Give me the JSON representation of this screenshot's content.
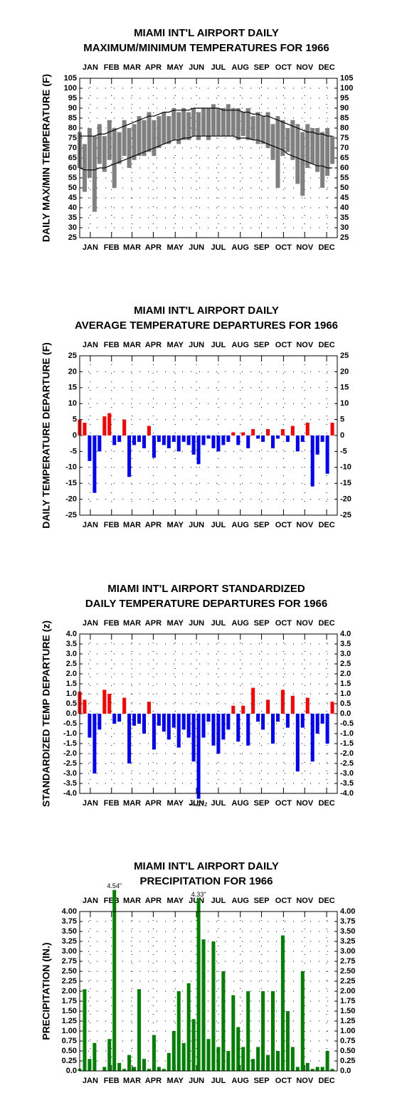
{
  "chart_data": [
    {
      "type": "range",
      "title": [
        "MIAMI INT'L AIRPORT DAILY",
        "MAXIMUM/MINIMUM TEMPERATURES FOR 1966"
      ],
      "y_label": "DAILY MAX/MIN TEMPERATURE (F)",
      "x": [
        1,
        8,
        15,
        22,
        29,
        36,
        43,
        50,
        57,
        64,
        71,
        78,
        85,
        92,
        99,
        106,
        113,
        120,
        127,
        134,
        141,
        148,
        155,
        162,
        169,
        176,
        183,
        190,
        197,
        204,
        211,
        218,
        225,
        232,
        239,
        246,
        253,
        260,
        267,
        274,
        281,
        288,
        295,
        302,
        309,
        316,
        323,
        330,
        337,
        344,
        351,
        358
      ],
      "series": [
        {
          "color": "#808080",
          "values": [
            78,
            72,
            80,
            76,
            82,
            76,
            84,
            80,
            78,
            84,
            80,
            82,
            86,
            84,
            88,
            84,
            86,
            88,
            86,
            90,
            88,
            90,
            88,
            90,
            88,
            90,
            90,
            92,
            90,
            90,
            92,
            90,
            90,
            88,
            90,
            86,
            88,
            86,
            88,
            82,
            86,
            84,
            80,
            84,
            82,
            78,
            82,
            80,
            80,
            78,
            80,
            76
          ]
        },
        {
          "color": "#808080",
          "values": [
            60,
            48,
            55,
            38,
            62,
            58,
            64,
            50,
            62,
            66,
            60,
            64,
            66,
            66,
            68,
            66,
            70,
            72,
            72,
            74,
            72,
            74,
            74,
            76,
            74,
            76,
            74,
            76,
            76,
            76,
            76,
            76,
            74,
            76,
            74,
            74,
            72,
            72,
            70,
            64,
            50,
            66,
            68,
            64,
            52,
            46,
            60,
            62,
            58,
            50,
            56,
            62
          ]
        },
        {
          "color": "#000000",
          "values": [
            76,
            76,
            76,
            76,
            77,
            77,
            78,
            79,
            80,
            81,
            82,
            83,
            84,
            85,
            86,
            86,
            87,
            88,
            88,
            89,
            89,
            89,
            89,
            90,
            90,
            90,
            90,
            90,
            90,
            89,
            89,
            89,
            89,
            88,
            88,
            87,
            87,
            86,
            86,
            85,
            84,
            83,
            82,
            81,
            80,
            79,
            78,
            78,
            77,
            77,
            76,
            76
          ]
        },
        {
          "color": "#000000",
          "values": [
            60,
            59,
            59,
            59,
            60,
            60,
            61,
            62,
            63,
            64,
            65,
            66,
            67,
            68,
            69,
            70,
            71,
            72,
            73,
            74,
            74,
            75,
            75,
            76,
            76,
            76,
            76,
            76,
            76,
            76,
            76,
            76,
            75,
            75,
            75,
            74,
            74,
            73,
            72,
            71,
            70,
            69,
            67,
            66,
            65,
            64,
            63,
            62,
            61,
            61,
            60,
            60
          ]
        }
      ],
      "xlim": [
        1,
        365
      ],
      "xticks": [
        {
          "value": 16,
          "label": "JAN"
        },
        {
          "value": 46,
          "label": "FEB"
        },
        {
          "value": 75,
          "label": "MAR"
        },
        {
          "value": 105,
          "label": "APR"
        },
        {
          "value": 136,
          "label": "MAY"
        },
        {
          "value": 166,
          "label": "JUN"
        },
        {
          "value": 197,
          "label": "JUL"
        },
        {
          "value": 228,
          "label": "AUG"
        },
        {
          "value": 258,
          "label": "SEP"
        },
        {
          "value": 289,
          "label": "OCT"
        },
        {
          "value": 319,
          "label": "NOV"
        },
        {
          "value": 350,
          "label": "DEC"
        }
      ],
      "ylim": [
        25,
        105
      ],
      "yticks": [
        25,
        30,
        35,
        40,
        45,
        50,
        55,
        60,
        65,
        70,
        75,
        80,
        85,
        90,
        95,
        100,
        105
      ],
      "grid": true
    },
    {
      "type": "bar",
      "title": [
        "MIAMI INT'L AIRPORT DAILY",
        "AVERAGE TEMPERATURE DEPARTURES FOR 1966"
      ],
      "y_label": "DAILY TEMPERATURE DEPARTURE (F)",
      "x": [
        1,
        8,
        15,
        22,
        29,
        36,
        43,
        50,
        57,
        64,
        71,
        78,
        85,
        92,
        99,
        106,
        113,
        120,
        127,
        134,
        141,
        148,
        155,
        162,
        169,
        176,
        183,
        190,
        197,
        204,
        211,
        218,
        225,
        232,
        239,
        246,
        253,
        260,
        267,
        274,
        281,
        288,
        295,
        302,
        309,
        316,
        323,
        330,
        337,
        344,
        351,
        358
      ],
      "values": [
        5,
        4,
        -8,
        -18,
        -5,
        6,
        7,
        -3,
        -2,
        5,
        -13,
        -3,
        -2,
        -4,
        3,
        -7,
        -2,
        -3,
        -4,
        -2,
        -5,
        -2,
        -3,
        -6,
        -9,
        -3,
        -1,
        -4,
        -5,
        -3,
        -2,
        1,
        -3,
        1,
        -4,
        2,
        -1,
        -2,
        2,
        -4,
        -1,
        2,
        -2,
        3,
        -5,
        -2,
        4,
        -16,
        -6,
        -2,
        -12,
        4
      ],
      "colors": {
        "positive": "#ff0000",
        "negative": "#0000ff"
      },
      "xlim": [
        1,
        365
      ],
      "xticks": [
        {
          "value": 16,
          "label": "JAN"
        },
        {
          "value": 46,
          "label": "FEB"
        },
        {
          "value": 75,
          "label": "MAR"
        },
        {
          "value": 105,
          "label": "APR"
        },
        {
          "value": 136,
          "label": "MAY"
        },
        {
          "value": 166,
          "label": "JUN"
        },
        {
          "value": 197,
          "label": "JUL"
        },
        {
          "value": 228,
          "label": "AUG"
        },
        {
          "value": 258,
          "label": "SEP"
        },
        {
          "value": 289,
          "label": "OCT"
        },
        {
          "value": 319,
          "label": "NOV"
        },
        {
          "value": 350,
          "label": "DEC"
        }
      ],
      "ylim": [
        -25,
        25
      ],
      "yticks": [
        -25,
        -20,
        -15,
        -10,
        -5,
        0,
        5,
        10,
        15,
        20,
        25
      ],
      "grid": true
    },
    {
      "type": "bar",
      "title": [
        "MIAMI INT'L AIRPORT STANDARDIZED",
        "DAILY TEMPERATURE DEPARTURES FOR 1966"
      ],
      "y_label": "STANDARDIZED TEMP DEPARTURE (z)",
      "x": [
        1,
        8,
        15,
        22,
        29,
        36,
        43,
        50,
        57,
        64,
        71,
        78,
        85,
        92,
        99,
        106,
        113,
        120,
        127,
        134,
        141,
        148,
        155,
        162,
        169,
        176,
        183,
        190,
        197,
        204,
        211,
        218,
        225,
        232,
        239,
        246,
        253,
        260,
        267,
        274,
        281,
        288,
        295,
        302,
        309,
        316,
        323,
        330,
        337,
        344,
        351,
        358
      ],
      "values": [
        1.1,
        0.7,
        -1.2,
        -3.0,
        -0.8,
        1.2,
        1.0,
        -0.5,
        -0.4,
        0.8,
        -2.5,
        -0.6,
        -0.5,
        -1.0,
        0.6,
        -1.8,
        -0.6,
        -0.9,
        -1.3,
        -0.7,
        -1.7,
        -0.8,
        -1.2,
        -2.4,
        -4.27,
        -1.2,
        -0.4,
        -1.6,
        -2.0,
        -1.3,
        -0.8,
        0.4,
        -1.4,
        0.4,
        -1.6,
        1.3,
        -0.4,
        -0.8,
        0.7,
        -1.5,
        -0.4,
        1.2,
        -0.7,
        0.9,
        -2.9,
        -0.7,
        0.8,
        -2.4,
        -1.0,
        -0.5,
        -1.5,
        0.6
      ],
      "value_labels": [
        null,
        null,
        null,
        null,
        null,
        null,
        null,
        null,
        null,
        null,
        null,
        null,
        null,
        null,
        null,
        null,
        null,
        null,
        null,
        null,
        null,
        null,
        null,
        null,
        "-4.27z",
        null,
        null,
        null,
        null,
        null,
        null,
        null,
        null,
        null,
        null,
        null,
        null,
        null,
        null,
        null,
        null,
        null,
        null,
        null,
        null,
        null,
        null,
        null,
        null,
        null,
        null,
        null
      ],
      "colors": {
        "positive": "#ff0000",
        "negative": "#0000ff"
      },
      "xlim": [
        1,
        365
      ],
      "xticks": [
        {
          "value": 16,
          "label": "JAN"
        },
        {
          "value": 46,
          "label": "FEB"
        },
        {
          "value": 75,
          "label": "MAR"
        },
        {
          "value": 105,
          "label": "APR"
        },
        {
          "value": 136,
          "label": "MAY"
        },
        {
          "value": 166,
          "label": "JUN"
        },
        {
          "value": 197,
          "label": "JUL"
        },
        {
          "value": 228,
          "label": "AUG"
        },
        {
          "value": 258,
          "label": "SEP"
        },
        {
          "value": 289,
          "label": "OCT"
        },
        {
          "value": 319,
          "label": "NOV"
        },
        {
          "value": 350,
          "label": "DEC"
        }
      ],
      "ylim": [
        -4,
        4
      ],
      "yticks": [
        {
          "value": -4,
          "label": "-4.0"
        },
        {
          "value": -3.5,
          "label": "-3.5"
        },
        {
          "value": -3,
          "label": "-3.0"
        },
        {
          "value": -2.5,
          "label": "-2.5"
        },
        {
          "value": -2,
          "label": "-2.0"
        },
        {
          "value": -1.5,
          "label": "-1.5"
        },
        {
          "value": -1,
          "label": "-1.0"
        },
        {
          "value": -0.5,
          "label": "-0.5"
        },
        {
          "value": 0,
          "label": "0.0"
        },
        {
          "value": 0.5,
          "label": "0.5"
        },
        {
          "value": 1,
          "label": "1.0"
        },
        {
          "value": 1.5,
          "label": "1.5"
        },
        {
          "value": 2,
          "label": "2.0"
        },
        {
          "value": 2.5,
          "label": "2.5"
        },
        {
          "value": 3,
          "label": "3.0"
        },
        {
          "value": 3.5,
          "label": "3.5"
        },
        {
          "value": 4,
          "label": "4.0"
        }
      ],
      "grid": true
    },
    {
      "type": "bar",
      "title": [
        "MIAMI INT'L AIRPORT DAILY",
        "PRECIPITATION FOR 1966"
      ],
      "y_label": "PRECIPITATION (IN.)",
      "x": [
        1,
        8,
        15,
        22,
        29,
        36,
        43,
        50,
        57,
        64,
        71,
        78,
        85,
        92,
        99,
        106,
        113,
        120,
        127,
        134,
        141,
        148,
        155,
        162,
        169,
        176,
        183,
        190,
        197,
        204,
        211,
        218,
        225,
        232,
        239,
        246,
        253,
        260,
        267,
        274,
        281,
        288,
        295,
        302,
        309,
        316,
        323,
        330,
        337,
        344,
        351,
        358
      ],
      "values": [
        0.05,
        2.05,
        0.3,
        0.7,
        0,
        0.1,
        0.8,
        4.54,
        0.2,
        0.05,
        0.4,
        0.1,
        2.05,
        0.3,
        0.05,
        0.9,
        0.1,
        0.05,
        0.45,
        1.0,
        2.0,
        0.7,
        2.2,
        1.3,
        4.33,
        3.3,
        0.8,
        3.25,
        0.6,
        2.5,
        0.5,
        1.9,
        1.1,
        0.6,
        2.0,
        0.3,
        0.6,
        2.0,
        0.4,
        2.0,
        0.5,
        3.4,
        1.5,
        0.6,
        0.1,
        2.5,
        0.2,
        0.05,
        0.1,
        0.1,
        0.5,
        0.05
      ],
      "value_labels": [
        null,
        null,
        null,
        null,
        null,
        null,
        null,
        "4.54\"",
        null,
        null,
        null,
        null,
        null,
        null,
        null,
        null,
        null,
        null,
        null,
        null,
        null,
        null,
        null,
        null,
        "4.33\"",
        null,
        null,
        null,
        null,
        null,
        null,
        null,
        null,
        null,
        null,
        null,
        null,
        null,
        null,
        null,
        null,
        null,
        null,
        null,
        null,
        null,
        null,
        null,
        null,
        null,
        null,
        null
      ],
      "colors": {
        "positive": "#008000",
        "negative": "#008000"
      },
      "xlim": [
        1,
        365
      ],
      "xticks": [
        {
          "value": 16,
          "label": "JAN"
        },
        {
          "value": 46,
          "label": "FEB"
        },
        {
          "value": 75,
          "label": "MAR"
        },
        {
          "value": 105,
          "label": "APR"
        },
        {
          "value": 136,
          "label": "MAY"
        },
        {
          "value": 166,
          "label": "JUN"
        },
        {
          "value": 197,
          "label": "JUL"
        },
        {
          "value": 228,
          "label": "AUG"
        },
        {
          "value": 258,
          "label": "SEP"
        },
        {
          "value": 289,
          "label": "OCT"
        },
        {
          "value": 319,
          "label": "NOV"
        },
        {
          "value": 350,
          "label": "DEC"
        }
      ],
      "ylim": [
        0,
        4
      ],
      "yticks": [
        {
          "value": 0,
          "label": "0.0"
        },
        {
          "value": 0.25,
          "label": "0.25"
        },
        {
          "value": 0.5,
          "label": "0.50"
        },
        {
          "value": 0.75,
          "label": "0.75"
        },
        {
          "value": 1,
          "label": "1.00"
        },
        {
          "value": 1.25,
          "label": "1.25"
        },
        {
          "value": 1.5,
          "label": "1.50"
        },
        {
          "value": 1.75,
          "label": "1.75"
        },
        {
          "value": 2,
          "label": "2.00"
        },
        {
          "value": 2.25,
          "label": "2.25"
        },
        {
          "value": 2.5,
          "label": "2.50"
        },
        {
          "value": 2.75,
          "label": "2.75"
        },
        {
          "value": 3,
          "label": "3.00"
        },
        {
          "value": 3.25,
          "label": "3.25"
        },
        {
          "value": 3.5,
          "label": "3.50"
        },
        {
          "value": 3.75,
          "label": "3.75"
        },
        {
          "value": 4,
          "label": "4.00"
        }
      ],
      "grid": true
    }
  ]
}
